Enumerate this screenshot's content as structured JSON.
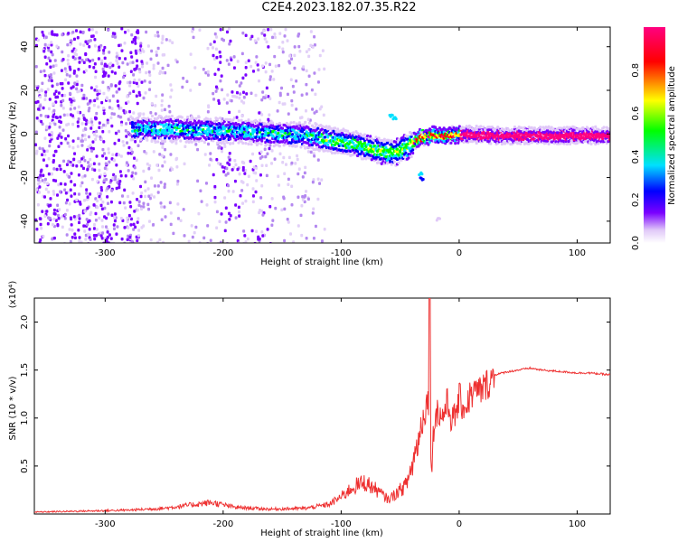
{
  "title": "C2E4.2023.182.07.35.R22",
  "chart_data": [
    {
      "type": "heatmap",
      "xlabel": "Height of straight line (km)",
      "ylabel": "Frequency (Hz)",
      "xlim": [
        -360,
        128
      ],
      "ylim": [
        -50,
        49
      ],
      "x_ticks": [
        -300,
        -200,
        -100,
        0,
        100
      ],
      "y_ticks": [
        -40,
        -20,
        0,
        20,
        40
      ],
      "colorbar": {
        "label": "Normalized spectral amplitude",
        "range": [
          0,
          1
        ],
        "ticks": [
          0.0,
          0.2,
          0.4,
          0.6,
          0.8
        ],
        "colors": [
          "#ffffff",
          "#e0c8f8",
          "#7a00ff",
          "#0000ff",
          "#00e0ff",
          "#00ff00",
          "#ffff00",
          "#ff0000",
          "#ff0080"
        ]
      },
      "trace": [
        {
          "x": -275,
          "f": 3
        },
        {
          "x": -250,
          "f": 3
        },
        {
          "x": -220,
          "f": 2.5
        },
        {
          "x": -190,
          "f": 2
        },
        {
          "x": -160,
          "f": 1
        },
        {
          "x": -130,
          "f": 0
        },
        {
          "x": -110,
          "f": -2
        },
        {
          "x": -90,
          "f": -4
        },
        {
          "x": -70,
          "f": -7
        },
        {
          "x": -55,
          "f": -8
        },
        {
          "x": -42,
          "f": -4
        },
        {
          "x": -35,
          "f": -1
        },
        {
          "x": -25,
          "f": 0
        },
        {
          "x": -10,
          "f": 0
        },
        {
          "x": 0,
          "f": 0.5
        },
        {
          "x": 30,
          "f": 0
        },
        {
          "x": 80,
          "f": 0
        },
        {
          "x": 128,
          "f": 0
        }
      ]
    },
    {
      "type": "line",
      "xlabel": "Height of straight line (km)",
      "ylabel": "SNR (10 * v/v)",
      "y_multiplier": "(x10⁴)",
      "xlim": [
        -360,
        128
      ],
      "ylim": [
        0,
        2.25
      ],
      "x_ticks": [
        -300,
        -200,
        -100,
        0,
        100
      ],
      "y_ticks": [
        0.5,
        1.0,
        1.5,
        2.0
      ],
      "color": "#ee3030",
      "series": [
        {
          "x": [
            -360,
            -320,
            -280,
            -250,
            -230,
            -210,
            -190,
            -160,
            -130,
            -110,
            -100,
            -90,
            -80,
            -70,
            -60,
            -50,
            -45,
            -40,
            -35,
            -30,
            -26,
            -25,
            -24,
            -20,
            -15,
            -10,
            -5,
            0,
            5,
            10,
            20,
            30,
            40,
            50,
            60,
            70,
            80,
            90,
            100,
            110,
            128
          ],
          "y": [
            0.02,
            0.03,
            0.04,
            0.06,
            0.09,
            0.12,
            0.07,
            0.05,
            0.06,
            0.1,
            0.18,
            0.28,
            0.33,
            0.25,
            0.15,
            0.25,
            0.3,
            0.5,
            0.75,
            1.05,
            1.2,
            2.25,
            0.45,
            1.1,
            1.0,
            1.15,
            0.95,
            1.2,
            1.1,
            1.25,
            1.3,
            1.45,
            1.48,
            1.5,
            1.52,
            1.5,
            1.49,
            1.48,
            1.47,
            1.47,
            1.45
          ]
        }
      ]
    }
  ]
}
